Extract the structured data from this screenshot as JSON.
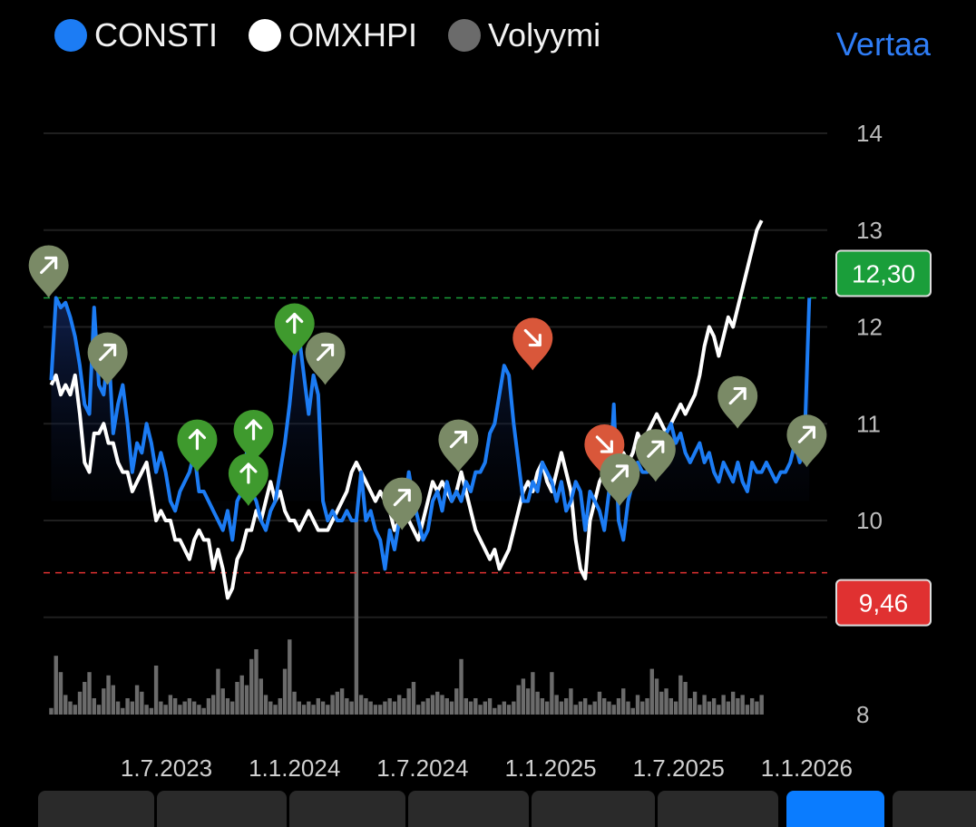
{
  "legend": {
    "items": [
      {
        "label": "CONSTI",
        "color": "#1c7cf4"
      },
      {
        "label": "OMXHPI",
        "color": "#ffffff"
      },
      {
        "label": "Volyymi",
        "color": "#6b6b6b"
      }
    ],
    "compare_label": "Vertaa"
  },
  "price_badges": {
    "high": {
      "label": "12,30",
      "value": 12.3,
      "color": "#1a9e3a"
    },
    "low": {
      "label": "9,46",
      "value": 9.46,
      "color": "#e03131"
    }
  },
  "tabs_count": 8,
  "active_tab_index": 6,
  "chart_data": {
    "type": "line",
    "x_ticks": [
      "1.7.2023",
      "1.1.2024",
      "1.7.2024",
      "1.1.2025",
      "1.7.2025",
      "1.1.2026"
    ],
    "x_tick_values": [
      2023.5,
      2024.0,
      2024.5,
      2025.0,
      2025.5,
      2026.0
    ],
    "x_range": [
      2023.02,
      2026.08
    ],
    "y_ticks": [
      8,
      10,
      11,
      12,
      13,
      14
    ],
    "ylim": [
      8,
      14
    ],
    "grid": true,
    "series": [
      {
        "name": "CONSTI",
        "color": "#1c7cf4",
        "values": [
          11.45,
          12.3,
          12.2,
          12.25,
          12.1,
          11.9,
          11.6,
          11.2,
          11.1,
          12.2,
          11.4,
          11.3,
          11.8,
          10.9,
          11.2,
          11.4,
          11.0,
          10.5,
          10.8,
          10.7,
          11.0,
          10.8,
          10.5,
          10.7,
          10.5,
          10.2,
          10.1,
          10.3,
          10.4,
          10.5,
          10.7,
          10.3,
          10.3,
          10.2,
          10.1,
          10.0,
          9.9,
          10.1,
          9.8,
          10.2,
          10.3,
          10.7,
          10.3,
          10.2,
          10.0,
          9.9,
          10.1,
          10.2,
          10.5,
          10.8,
          11.2,
          11.7,
          11.9,
          11.5,
          11.1,
          11.5,
          11.3,
          10.2,
          10.0,
          10.1,
          10.0,
          10.0,
          10.1,
          10.0,
          10.0,
          10.5,
          10.0,
          10.1,
          9.9,
          9.8,
          9.5,
          9.9,
          9.7,
          10.0,
          10.1,
          10.5,
          10.2,
          10.0,
          9.8,
          9.9,
          10.2,
          10.3,
          10.1,
          10.4,
          10.2,
          10.3,
          10.2,
          10.4,
          10.3,
          10.5,
          10.5,
          10.6,
          10.9,
          11.0,
          11.3,
          11.6,
          11.5,
          11.0,
          10.6,
          10.2,
          10.2,
          10.4,
          10.3,
          10.6,
          10.5,
          10.4,
          10.2,
          10.4,
          10.1,
          10.2,
          10.4,
          10.3,
          9.9,
          10.3,
          10.2,
          10.1,
          9.9,
          10.3,
          11.2,
          10.0,
          9.8,
          10.2,
          10.4,
          10.6,
          10.5,
          10.5,
          10.6,
          10.8,
          10.7,
          10.9,
          11.0,
          10.8,
          10.9,
          10.7,
          10.6,
          10.7,
          10.8,
          10.6,
          10.7,
          10.5,
          10.4,
          10.6,
          10.5,
          10.4,
          10.6,
          10.4,
          10.3,
          10.6,
          10.5,
          10.5,
          10.6,
          10.5,
          10.4,
          10.5,
          10.5,
          10.6,
          10.8,
          10.6,
          10.8,
          12.3
        ]
      },
      {
        "name": "OMXHPI",
        "color": "#ffffff",
        "values": [
          11.4,
          11.5,
          11.3,
          11.4,
          11.3,
          11.5,
          11.1,
          10.6,
          10.5,
          10.9,
          10.9,
          11.0,
          10.8,
          10.8,
          10.6,
          10.5,
          10.5,
          10.3,
          10.4,
          10.5,
          10.6,
          10.3,
          10.0,
          10.1,
          10.0,
          10.0,
          9.8,
          9.8,
          9.7,
          9.6,
          9.8,
          9.9,
          9.8,
          9.8,
          9.5,
          9.7,
          9.5,
          9.2,
          9.3,
          9.6,
          9.7,
          9.9,
          9.9,
          10.1,
          10.0,
          10.2,
          10.4,
          10.2,
          10.3,
          10.1,
          10.0,
          10.0,
          9.9,
          10.0,
          10.1,
          10.0,
          9.9,
          9.9,
          9.9,
          10.0,
          10.1,
          10.2,
          10.3,
          10.5,
          10.6,
          10.5,
          10.4,
          10.3,
          10.2,
          10.3,
          10.2,
          10.1,
          9.9,
          10.0,
          10.1,
          10.0,
          9.9,
          9.8,
          10.0,
          10.2,
          10.4,
          10.3,
          10.4,
          10.3,
          10.2,
          10.3,
          10.5,
          10.3,
          10.1,
          9.9,
          9.8,
          9.7,
          9.6,
          9.7,
          9.5,
          9.6,
          9.7,
          9.9,
          10.1,
          10.3,
          10.4,
          10.3,
          10.5,
          10.6,
          10.4,
          10.3,
          10.5,
          10.7,
          10.5,
          10.3,
          9.8,
          9.5,
          9.4,
          10.0,
          10.2,
          10.4,
          10.5,
          10.6,
          10.5,
          10.6,
          10.7,
          10.6,
          10.7,
          10.9,
          10.8,
          10.9,
          11.0,
          11.1,
          11.0,
          10.9,
          11.0,
          11.1,
          11.2,
          11.1,
          11.2,
          11.3,
          11.5,
          11.8,
          12.0,
          11.9,
          11.7,
          11.9,
          12.1,
          12.0,
          12.2,
          12.4,
          12.6,
          12.8,
          13.0,
          13.1
        ]
      },
      {
        "name": "Volyymi",
        "color": "#6b6b6b",
        "values": [
          0.2,
          1.8,
          1.3,
          0.6,
          0.4,
          0.3,
          0.7,
          1.0,
          1.3,
          0.5,
          0.3,
          0.8,
          1.2,
          0.9,
          0.4,
          0.2,
          0.5,
          0.4,
          0.9,
          0.7,
          0.3,
          0.2,
          1.5,
          0.4,
          0.3,
          0.6,
          0.5,
          0.3,
          0.4,
          0.5,
          0.4,
          0.3,
          0.2,
          0.5,
          0.6,
          1.4,
          0.8,
          0.5,
          0.4,
          1.0,
          1.2,
          0.9,
          1.7,
          2.0,
          1.1,
          0.6,
          0.4,
          0.3,
          0.5,
          1.4,
          2.3,
          0.7,
          0.4,
          0.3,
          0.4,
          0.3,
          0.5,
          0.4,
          0.3,
          0.6,
          0.7,
          0.8,
          0.5,
          0.4,
          6.0,
          0.6,
          0.5,
          0.4,
          0.3,
          0.3,
          0.4,
          0.5,
          0.4,
          0.6,
          0.5,
          0.8,
          1.0,
          0.3,
          0.4,
          0.5,
          0.6,
          0.7,
          0.6,
          0.5,
          0.4,
          0.8,
          1.7,
          0.5,
          0.4,
          0.5,
          0.3,
          0.4,
          0.5,
          0.2,
          0.3,
          0.4,
          0.3,
          0.4,
          0.9,
          1.1,
          0.8,
          1.3,
          0.7,
          0.5,
          0.4,
          1.3,
          0.6,
          0.4,
          0.5,
          0.8,
          0.3,
          0.4,
          0.5,
          0.3,
          0.4,
          0.7,
          0.5,
          0.4,
          0.3,
          0.5,
          0.8,
          0.4,
          0.2,
          0.6,
          0.4,
          0.5,
          1.4,
          1.1,
          0.7,
          0.8,
          0.5,
          0.4,
          1.2,
          1.0,
          0.5,
          0.7,
          0.3,
          0.6,
          0.4,
          0.5,
          0.3,
          0.6,
          0.4,
          0.7,
          0.5,
          0.6,
          0.3,
          0.5,
          0.4,
          0.6
        ]
      }
    ],
    "reference_lines": [
      {
        "value": 12.3,
        "color": "#1a9e3a",
        "style": "dashed"
      },
      {
        "value": 9.46,
        "color": "#e03131",
        "style": "dashed"
      }
    ],
    "events": [
      {
        "x": 2023.04,
        "y": 12.3,
        "kind": "diagonal-up",
        "color": "#7a8a66"
      },
      {
        "x": 2023.27,
        "y": 11.4,
        "kind": "diagonal-up",
        "color": "#7a8a66"
      },
      {
        "x": 2023.62,
        "y": 10.5,
        "kind": "up",
        "color": "#3f9a2e"
      },
      {
        "x": 2023.82,
        "y": 10.15,
        "kind": "up",
        "color": "#3f9a2e"
      },
      {
        "x": 2023.84,
        "y": 10.6,
        "kind": "up",
        "color": "#3f9a2e"
      },
      {
        "x": 2024.0,
        "y": 11.7,
        "kind": "up",
        "color": "#3f9a2e"
      },
      {
        "x": 2024.12,
        "y": 11.4,
        "kind": "diagonal-up",
        "color": "#7a8a66"
      },
      {
        "x": 2024.42,
        "y": 9.9,
        "kind": "diagonal-up",
        "color": "#7a8a66"
      },
      {
        "x": 2024.64,
        "y": 10.5,
        "kind": "diagonal-up",
        "color": "#7a8a66"
      },
      {
        "x": 2024.93,
        "y": 11.55,
        "kind": "diagonal-down",
        "color": "#d9573a"
      },
      {
        "x": 2025.21,
        "y": 10.45,
        "kind": "diagonal-down",
        "color": "#d9573a"
      },
      {
        "x": 2025.27,
        "y": 10.15,
        "kind": "diagonal-up",
        "color": "#7a8a66"
      },
      {
        "x": 2025.41,
        "y": 10.4,
        "kind": "diagonal-up",
        "color": "#7a8a66"
      },
      {
        "x": 2025.73,
        "y": 10.95,
        "kind": "diagonal-up",
        "color": "#7a8a66"
      },
      {
        "x": 2026.0,
        "y": 10.55,
        "kind": "diagonal-up",
        "color": "#7a8a66"
      }
    ]
  }
}
